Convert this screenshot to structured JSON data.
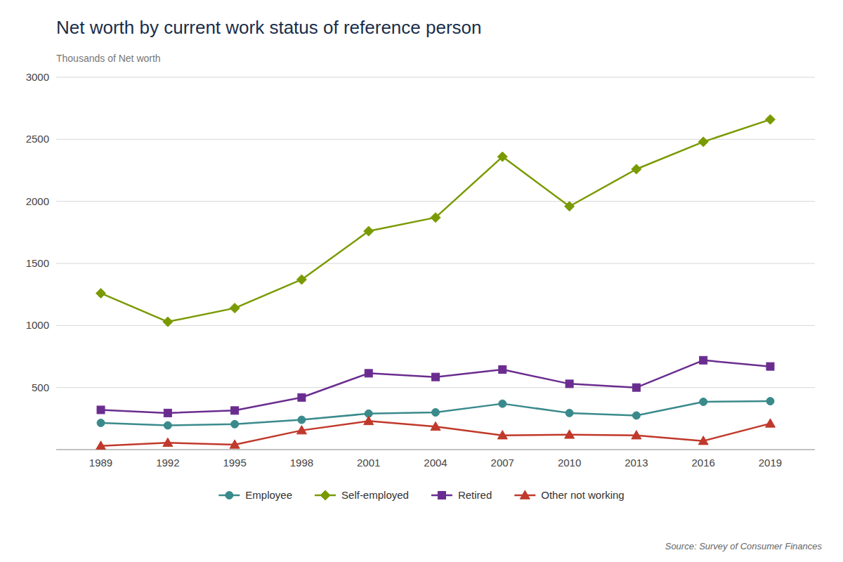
{
  "chart_data": {
    "type": "line",
    "title": "Net worth by current work status of reference person",
    "y_label": "Thousands of Net worth",
    "source": "Source: Survey of Consumer Finances",
    "x": [
      1989,
      1992,
      1995,
      1998,
      2001,
      2004,
      2007,
      2010,
      2013,
      2016,
      2019
    ],
    "xlim": [
      1987,
      2021
    ],
    "xticks": [
      1989,
      1992,
      1995,
      1998,
      2001,
      2004,
      2007,
      2010,
      2013,
      2016,
      2019
    ],
    "ylim": [
      0,
      3000
    ],
    "yticks": [
      {
        "value": 0,
        "label": null
      },
      500,
      1000,
      1500,
      2000,
      2500,
      3000
    ],
    "grid": true,
    "legend": "bottom",
    "series": [
      {
        "name": "Employee",
        "color": "#3a8a8c",
        "marker": "circle",
        "values": [
          215,
          195,
          205,
          240,
          290,
          300,
          370,
          295,
          275,
          385,
          390
        ]
      },
      {
        "name": "Self-employed",
        "color": "#7a9a01",
        "marker": "diamond",
        "values": [
          1260,
          1030,
          1140,
          1370,
          1760,
          1870,
          2360,
          1960,
          2260,
          2480,
          2660
        ]
      },
      {
        "name": "Retired",
        "color": "#6a2d8f",
        "marker": "square",
        "values": [
          320,
          295,
          315,
          420,
          615,
          585,
          645,
          530,
          500,
          720,
          670
        ]
      },
      {
        "name": "Other not working",
        "color": "#c0392b",
        "marker": "triangle",
        "values": [
          30,
          55,
          40,
          155,
          230,
          185,
          115,
          120,
          115,
          70,
          210
        ]
      }
    ]
  }
}
